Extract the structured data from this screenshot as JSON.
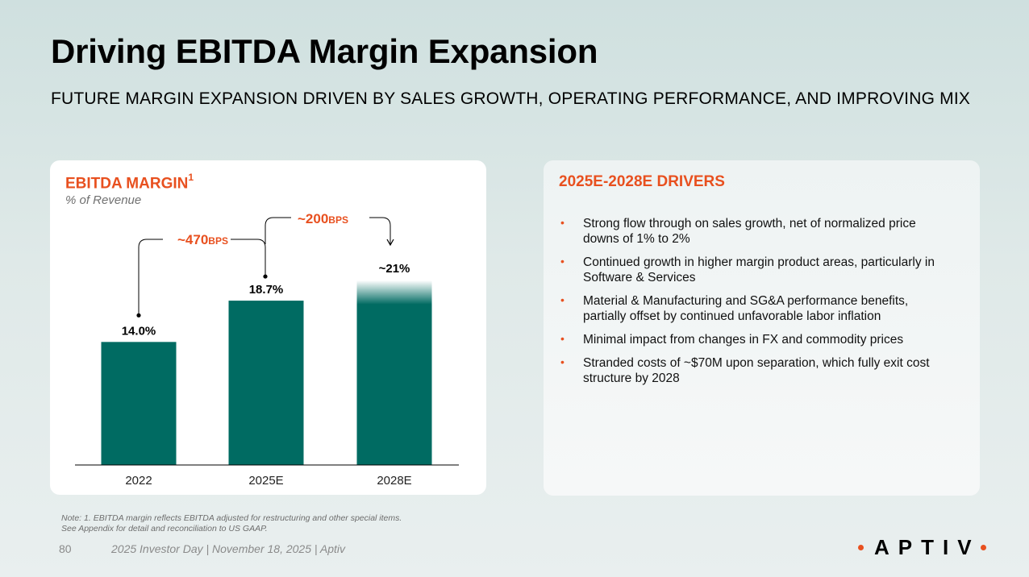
{
  "header": {
    "title": "Driving EBITDA Margin Expansion",
    "subtitle": "FUTURE MARGIN EXPANSION DRIVEN BY SALES GROWTH, OPERATING PERFORMANCE, AND IMPROVING MIX"
  },
  "chart_data": {
    "type": "bar",
    "title": "EBITDA MARGIN",
    "title_superscript": "1",
    "subtitle": "% of Revenue",
    "categories": [
      "2022",
      "2025E",
      "2028E"
    ],
    "values": [
      14.0,
      18.7,
      21
    ],
    "data_labels": [
      "14.0%",
      "18.7%",
      "~21%"
    ],
    "ylim": [
      0,
      21
    ],
    "grid": false,
    "annotations": [
      {
        "from": "2022",
        "to": "2025E",
        "value": "~470",
        "unit": "BPS"
      },
      {
        "from": "2025E",
        "to": "2028E",
        "value": "~200",
        "unit": "BPS"
      }
    ],
    "colors": {
      "bar": "#006b62",
      "annotation": "#e8501f"
    }
  },
  "drivers": {
    "title": "2025E-2028E DRIVERS",
    "bullet": "•",
    "items": [
      "Strong flow through on sales growth, net of normalized price downs of 1% to 2%",
      "Continued growth in higher margin product areas, particularly in Software & Services",
      "Material & Manufacturing and SG&A performance benefits, partially offset by continued unfavorable labor inflation",
      "Minimal impact from changes in FX and commodity prices",
      "Stranded costs of ~$70M upon separation, which fully exit cost structure by 2028"
    ]
  },
  "footer": {
    "note_line1": "Note: 1. EBITDA margin reflects EBITDA adjusted for restructuring and other special items.",
    "note_line2": "See Appendix for detail and reconciliation to US GAAP.",
    "page_number": "80",
    "event": "2025 Investor Day | November 18, 2025 | Aptiv",
    "logo_text": "APTIV"
  },
  "colors": {
    "accent": "#e8501f",
    "bar": "#006b62"
  }
}
